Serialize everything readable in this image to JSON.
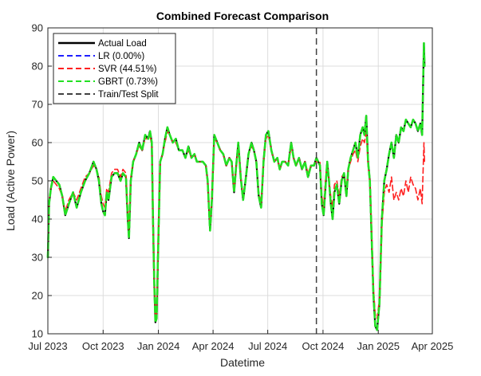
{
  "chart_data": {
    "type": "line",
    "title": "Combined Forecast Comparison",
    "xlabel": "Datetime",
    "ylabel": "Load (Active Power)",
    "xlim": [
      "2023-07-01",
      "2025-04-01"
    ],
    "ylim": [
      10,
      90
    ],
    "x_ticks": [
      "2023-07-01",
      "2023-10-01",
      "2024-01-01",
      "2024-04-01",
      "2024-07-01",
      "2024-10-01",
      "2025-01-01",
      "2025-04-01"
    ],
    "x_tick_labels": [
      "Jul 2023",
      "Oct 2023",
      "Jan 2024",
      "Apr 2024",
      "Jul 2024",
      "Oct 2024",
      "Jan 2025",
      "Apr 2025"
    ],
    "y_ticks": [
      10,
      20,
      30,
      40,
      50,
      60,
      70,
      80,
      90
    ],
    "grid": true,
    "legend_position": "top-left",
    "split_date": "2024-09-20",
    "colors": {
      "actual": "#000000",
      "lr": "#1f1fff",
      "svr": "#ff1f1f",
      "gbrt": "#22e022",
      "split": "#404040"
    },
    "legend": [
      {
        "key": "actual",
        "label": "Actual Load",
        "dash": "solid"
      },
      {
        "key": "lr",
        "label": "LR (0.00%)",
        "dash": "dashed"
      },
      {
        "key": "svr",
        "label": "SVR (44.51%)",
        "dash": "dashed"
      },
      {
        "key": "gbrt",
        "label": "GBRT (0.73%)",
        "dash": "dashed"
      },
      {
        "key": "split",
        "label": "Train/Test Split",
        "dash": "dashed"
      }
    ],
    "actual": [
      [
        "2023-07-01",
        30
      ],
      [
        "2023-07-03",
        44
      ],
      [
        "2023-07-06",
        48
      ],
      [
        "2023-07-10",
        51
      ],
      [
        "2023-07-15",
        50
      ],
      [
        "2023-07-20",
        49
      ],
      [
        "2023-07-25",
        46
      ],
      [
        "2023-07-30",
        41
      ],
      [
        "2023-08-05",
        44
      ],
      [
        "2023-08-12",
        47
      ],
      [
        "2023-08-18",
        43
      ],
      [
        "2023-08-25",
        47
      ],
      [
        "2023-09-01",
        50
      ],
      [
        "2023-09-08",
        52
      ],
      [
        "2023-09-15",
        55
      ],
      [
        "2023-09-20",
        53
      ],
      [
        "2023-09-24",
        50
      ],
      [
        "2023-09-28",
        44
      ],
      [
        "2023-10-01",
        42
      ],
      [
        "2023-10-04",
        41
      ],
      [
        "2023-10-07",
        47
      ],
      [
        "2023-10-10",
        45
      ],
      [
        "2023-10-15",
        51
      ],
      [
        "2023-10-20",
        52
      ],
      [
        "2023-10-25",
        52
      ],
      [
        "2023-10-30",
        50
      ],
      [
        "2023-11-03",
        52
      ],
      [
        "2023-11-08",
        51
      ],
      [
        "2023-11-11",
        40
      ],
      [
        "2023-11-13",
        35
      ],
      [
        "2023-11-16",
        50
      ],
      [
        "2023-11-20",
        55
      ],
      [
        "2023-11-25",
        57
      ],
      [
        "2023-11-30",
        60
      ],
      [
        "2023-12-05",
        58
      ],
      [
        "2023-12-10",
        62
      ],
      [
        "2023-12-15",
        61
      ],
      [
        "2023-12-18",
        63
      ],
      [
        "2023-12-21",
        60
      ],
      [
        "2023-12-23",
        40
      ],
      [
        "2023-12-25",
        24
      ],
      [
        "2023-12-27",
        13
      ],
      [
        "2023-12-29",
        14
      ],
      [
        "2024-01-01",
        35
      ],
      [
        "2024-01-04",
        55
      ],
      [
        "2024-01-08",
        57
      ],
      [
        "2024-01-12",
        61
      ],
      [
        "2024-01-16",
        64
      ],
      [
        "2024-01-20",
        62
      ],
      [
        "2024-01-25",
        60
      ],
      [
        "2024-01-30",
        61
      ],
      [
        "2024-02-04",
        58
      ],
      [
        "2024-02-10",
        58
      ],
      [
        "2024-02-15",
        56
      ],
      [
        "2024-02-20",
        59
      ],
      [
        "2024-02-25",
        56
      ],
      [
        "2024-03-01",
        57
      ],
      [
        "2024-03-05",
        55
      ],
      [
        "2024-03-10",
        55
      ],
      [
        "2024-03-15",
        55
      ],
      [
        "2024-03-20",
        54
      ],
      [
        "2024-03-23",
        50
      ],
      [
        "2024-03-27",
        37
      ],
      [
        "2024-03-30",
        45
      ],
      [
        "2024-04-03",
        62
      ],
      [
        "2024-04-08",
        60
      ],
      [
        "2024-04-13",
        58
      ],
      [
        "2024-04-18",
        57
      ],
      [
        "2024-04-23",
        54
      ],
      [
        "2024-04-28",
        56
      ],
      [
        "2024-05-02",
        55
      ],
      [
        "2024-05-06",
        47
      ],
      [
        "2024-05-09",
        53
      ],
      [
        "2024-05-13",
        60
      ],
      [
        "2024-05-17",
        51
      ],
      [
        "2024-05-21",
        45
      ],
      [
        "2024-05-25",
        50
      ],
      [
        "2024-05-30",
        57
      ],
      [
        "2024-06-04",
        60
      ],
      [
        "2024-06-08",
        58
      ],
      [
        "2024-06-12",
        55
      ],
      [
        "2024-06-16",
        46
      ],
      [
        "2024-06-20",
        43
      ],
      [
        "2024-06-24",
        55
      ],
      [
        "2024-06-28",
        62
      ],
      [
        "2024-07-02",
        63
      ],
      [
        "2024-07-07",
        58
      ],
      [
        "2024-07-12",
        55
      ],
      [
        "2024-07-17",
        56
      ],
      [
        "2024-07-21",
        53
      ],
      [
        "2024-07-25",
        55
      ],
      [
        "2024-07-30",
        55
      ],
      [
        "2024-08-04",
        54
      ],
      [
        "2024-08-09",
        60
      ],
      [
        "2024-08-13",
        56
      ],
      [
        "2024-08-17",
        54
      ],
      [
        "2024-08-22",
        56
      ],
      [
        "2024-08-27",
        53
      ],
      [
        "2024-09-01",
        55
      ],
      [
        "2024-09-06",
        51
      ],
      [
        "2024-09-11",
        54
      ],
      [
        "2024-09-16",
        54
      ],
      [
        "2024-09-20",
        56
      ],
      [
        "2024-09-23",
        55
      ],
      [
        "2024-09-26",
        54
      ],
      [
        "2024-09-29",
        44
      ],
      [
        "2024-10-02",
        41
      ],
      [
        "2024-10-05",
        48
      ],
      [
        "2024-10-08",
        55
      ],
      [
        "2024-10-11",
        50
      ],
      [
        "2024-10-14",
        44
      ],
      [
        "2024-10-17",
        40
      ],
      [
        "2024-10-20",
        47
      ],
      [
        "2024-10-24",
        49
      ],
      [
        "2024-10-28",
        44
      ],
      [
        "2024-11-01",
        50
      ],
      [
        "2024-11-05",
        52
      ],
      [
        "2024-11-09",
        46
      ],
      [
        "2024-11-12",
        53
      ],
      [
        "2024-11-16",
        56
      ],
      [
        "2024-11-20",
        58
      ],
      [
        "2024-11-24",
        60
      ],
      [
        "2024-11-28",
        56
      ],
      [
        "2024-12-02",
        62
      ],
      [
        "2024-12-06",
        64
      ],
      [
        "2024-12-09",
        62
      ],
      [
        "2024-12-12",
        67
      ],
      [
        "2024-12-15",
        55
      ],
      [
        "2024-12-18",
        50
      ],
      [
        "2024-12-21",
        35
      ],
      [
        "2024-12-24",
        20
      ],
      [
        "2024-12-27",
        12
      ],
      [
        "2024-12-30",
        11
      ],
      [
        "2025-01-03",
        18
      ],
      [
        "2025-01-07",
        40
      ],
      [
        "2025-01-11",
        50
      ],
      [
        "2025-01-15",
        53
      ],
      [
        "2025-01-19",
        57
      ],
      [
        "2025-01-23",
        60
      ],
      [
        "2025-01-27",
        56
      ],
      [
        "2025-01-31",
        62
      ],
      [
        "2025-02-04",
        60
      ],
      [
        "2025-02-08",
        64
      ],
      [
        "2025-02-12",
        63
      ],
      [
        "2025-02-16",
        66
      ],
      [
        "2025-02-20",
        65
      ],
      [
        "2025-02-24",
        64
      ],
      [
        "2025-02-28",
        66
      ],
      [
        "2025-03-04",
        65
      ],
      [
        "2025-03-08",
        63
      ],
      [
        "2025-03-12",
        65
      ],
      [
        "2025-03-15",
        62
      ],
      [
        "2025-03-18",
        86
      ],
      [
        "2025-03-19",
        80
      ]
    ],
    "svr": [
      [
        "2023-07-01",
        32
      ],
      [
        "2023-07-03",
        45
      ],
      [
        "2023-07-06",
        48
      ],
      [
        "2023-07-10",
        50
      ],
      [
        "2023-07-15",
        49
      ],
      [
        "2023-07-20",
        48
      ],
      [
        "2023-07-25",
        46
      ],
      [
        "2023-07-30",
        42
      ],
      [
        "2023-08-05",
        45
      ],
      [
        "2023-08-12",
        47
      ],
      [
        "2023-08-18",
        45
      ],
      [
        "2023-08-25",
        48
      ],
      [
        "2023-09-01",
        51
      ],
      [
        "2023-09-08",
        52
      ],
      [
        "2023-09-15",
        54
      ],
      [
        "2023-09-20",
        53
      ],
      [
        "2023-09-24",
        51
      ],
      [
        "2023-09-28",
        46
      ],
      [
        "2023-10-01",
        44
      ],
      [
        "2023-10-04",
        43
      ],
      [
        "2023-10-07",
        48
      ],
      [
        "2023-10-10",
        47
      ],
      [
        "2023-10-15",
        52
      ],
      [
        "2023-10-20",
        53
      ],
      [
        "2023-10-25",
        53
      ],
      [
        "2023-10-30",
        51
      ],
      [
        "2023-11-03",
        53
      ],
      [
        "2023-11-08",
        52
      ],
      [
        "2023-11-11",
        42
      ],
      [
        "2023-11-13",
        37
      ],
      [
        "2023-11-16",
        51
      ],
      [
        "2023-11-20",
        55
      ],
      [
        "2023-11-25",
        57
      ],
      [
        "2023-11-30",
        59
      ],
      [
        "2023-12-05",
        58
      ],
      [
        "2023-12-10",
        61
      ],
      [
        "2023-12-15",
        61
      ],
      [
        "2023-12-18",
        62
      ],
      [
        "2023-12-21",
        59
      ],
      [
        "2023-12-23",
        41
      ],
      [
        "2023-12-25",
        25
      ],
      [
        "2023-12-27",
        14
      ],
      [
        "2023-12-29",
        15
      ],
      [
        "2024-01-01",
        36
      ],
      [
        "2024-01-04",
        55
      ],
      [
        "2024-01-08",
        57
      ],
      [
        "2024-01-12",
        60
      ],
      [
        "2024-01-16",
        63
      ],
      [
        "2024-01-20",
        62
      ],
      [
        "2024-01-25",
        60
      ],
      [
        "2024-01-30",
        60
      ],
      [
        "2024-02-04",
        58
      ],
      [
        "2024-02-10",
        58
      ],
      [
        "2024-02-15",
        56
      ],
      [
        "2024-02-20",
        58
      ],
      [
        "2024-02-25",
        56
      ],
      [
        "2024-03-01",
        57
      ],
      [
        "2024-03-05",
        55
      ],
      [
        "2024-03-10",
        55
      ],
      [
        "2024-03-15",
        55
      ],
      [
        "2024-03-20",
        54
      ],
      [
        "2024-03-23",
        50
      ],
      [
        "2024-03-27",
        38
      ],
      [
        "2024-03-30",
        46
      ],
      [
        "2024-04-03",
        61
      ],
      [
        "2024-04-08",
        60
      ],
      [
        "2024-04-13",
        58
      ],
      [
        "2024-04-18",
        57
      ],
      [
        "2024-04-23",
        54
      ],
      [
        "2024-04-28",
        56
      ],
      [
        "2024-05-02",
        55
      ],
      [
        "2024-05-06",
        48
      ],
      [
        "2024-05-09",
        53
      ],
      [
        "2024-05-13",
        59
      ],
      [
        "2024-05-17",
        51
      ],
      [
        "2024-05-21",
        46
      ],
      [
        "2024-05-25",
        50
      ],
      [
        "2024-05-30",
        57
      ],
      [
        "2024-06-04",
        59
      ],
      [
        "2024-06-08",
        58
      ],
      [
        "2024-06-12",
        55
      ],
      [
        "2024-06-16",
        47
      ],
      [
        "2024-06-20",
        44
      ],
      [
        "2024-06-24",
        55
      ],
      [
        "2024-06-28",
        61
      ],
      [
        "2024-07-02",
        62
      ],
      [
        "2024-07-07",
        58
      ],
      [
        "2024-07-12",
        55
      ],
      [
        "2024-07-17",
        56
      ],
      [
        "2024-07-21",
        53
      ],
      [
        "2024-07-25",
        55
      ],
      [
        "2024-07-30",
        55
      ],
      [
        "2024-08-04",
        54
      ],
      [
        "2024-08-09",
        59
      ],
      [
        "2024-08-13",
        56
      ],
      [
        "2024-08-17",
        54
      ],
      [
        "2024-08-22",
        56
      ],
      [
        "2024-08-27",
        53
      ],
      [
        "2024-09-01",
        55
      ],
      [
        "2024-09-06",
        52
      ],
      [
        "2024-09-11",
        54
      ],
      [
        "2024-09-16",
        54
      ],
      [
        "2024-09-20",
        55
      ],
      [
        "2024-09-23",
        55
      ],
      [
        "2024-09-26",
        55
      ],
      [
        "2024-09-29",
        46
      ],
      [
        "2024-10-02",
        43
      ],
      [
        "2024-10-05",
        50
      ],
      [
        "2024-10-08",
        54
      ],
      [
        "2024-10-11",
        50
      ],
      [
        "2024-10-14",
        46
      ],
      [
        "2024-10-17",
        43
      ],
      [
        "2024-10-20",
        49
      ],
      [
        "2024-10-24",
        50
      ],
      [
        "2024-10-28",
        46
      ],
      [
        "2024-11-01",
        51
      ],
      [
        "2024-11-05",
        52
      ],
      [
        "2024-11-09",
        48
      ],
      [
        "2024-11-12",
        53
      ],
      [
        "2024-11-16",
        55
      ],
      [
        "2024-11-20",
        57
      ],
      [
        "2024-11-24",
        58
      ],
      [
        "2024-11-28",
        55
      ],
      [
        "2024-12-02",
        59
      ],
      [
        "2024-12-06",
        61
      ],
      [
        "2024-12-09",
        60
      ],
      [
        "2024-12-12",
        63
      ],
      [
        "2024-12-15",
        54
      ],
      [
        "2024-12-18",
        50
      ],
      [
        "2024-12-21",
        37
      ],
      [
        "2024-12-24",
        22
      ],
      [
        "2024-12-27",
        15
      ],
      [
        "2024-12-30",
        14
      ],
      [
        "2025-01-03",
        19
      ],
      [
        "2025-01-07",
        38
      ],
      [
        "2025-01-11",
        47
      ],
      [
        "2025-01-15",
        49
      ],
      [
        "2025-01-19",
        47
      ],
      [
        "2025-01-23",
        51
      ],
      [
        "2025-01-27",
        45
      ],
      [
        "2025-01-31",
        47
      ],
      [
        "2025-02-04",
        45
      ],
      [
        "2025-02-08",
        48
      ],
      [
        "2025-02-12",
        46
      ],
      [
        "2025-02-16",
        50
      ],
      [
        "2025-02-20",
        47
      ],
      [
        "2025-02-24",
        51
      ],
      [
        "2025-02-28",
        49
      ],
      [
        "2025-03-04",
        48
      ],
      [
        "2025-03-08",
        45
      ],
      [
        "2025-03-12",
        48
      ],
      [
        "2025-03-15",
        44
      ],
      [
        "2025-03-18",
        60
      ],
      [
        "2025-03-19",
        55
      ]
    ]
  }
}
